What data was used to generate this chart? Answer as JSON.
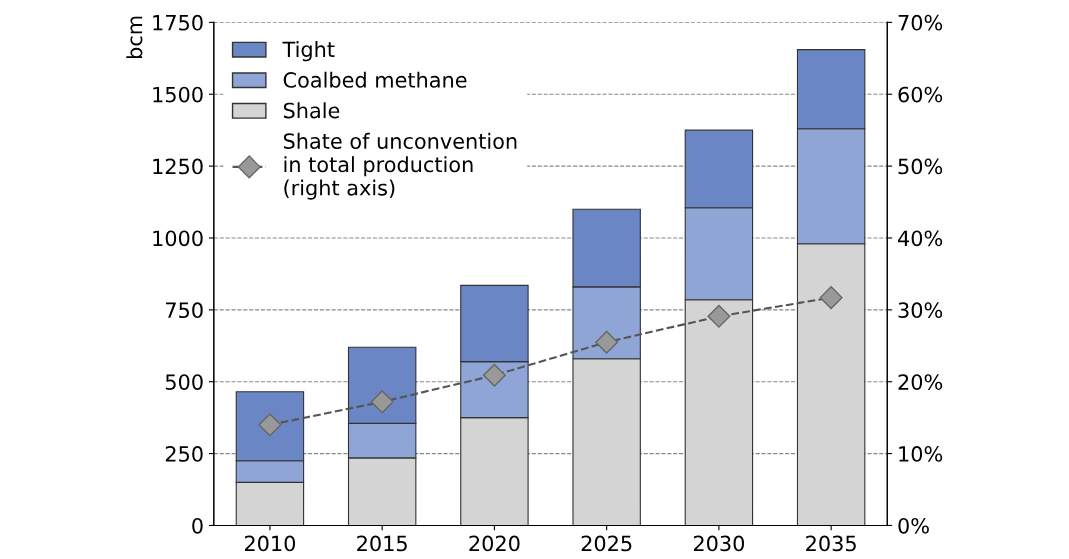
{
  "chart_data": {
    "type": "bar",
    "stacked": true,
    "ylabel": "bcm",
    "categories": [
      "2010",
      "2015",
      "2020",
      "2025",
      "2030",
      "2035"
    ],
    "series": [
      {
        "name": "Shale",
        "color": "#d4d4d4",
        "values": [
          150,
          235,
          375,
          580,
          785,
          980
        ]
      },
      {
        "name": "Coalbed methane",
        "color": "#8fa5d6",
        "values": [
          75,
          120,
          195,
          250,
          320,
          400
        ]
      },
      {
        "name": "Tight",
        "color": "#6b86c4",
        "values": [
          240,
          265,
          265,
          270,
          270,
          275
        ]
      },
      {
        "name": "Shate of unconvention\nin total production\n(right axis)",
        "type": "line",
        "axis": "y2",
        "color": "#999999",
        "marker": "diamond",
        "line_style": "dashed",
        "values": [
          14.0,
          17.2,
          20.9,
          25.5,
          29.1,
          31.7
        ]
      }
    ],
    "ylim": [
      0,
      1750
    ],
    "yticks": [
      0,
      250,
      500,
      750,
      1000,
      1250,
      1500,
      1750
    ],
    "y2lim": [
      0,
      70
    ],
    "y2ticks": [
      {
        "value": 0,
        "label": "0%"
      },
      {
        "value": 10,
        "label": "10%"
      },
      {
        "value": 20,
        "label": "20%"
      },
      {
        "value": 30,
        "label": "30%"
      },
      {
        "value": 40,
        "label": "40%"
      },
      {
        "value": 50,
        "label": "50%"
      },
      {
        "value": 60,
        "label": "60%"
      },
      {
        "value": 70,
        "label": "70%"
      }
    ],
    "grid": "y",
    "legend": "top left"
  }
}
